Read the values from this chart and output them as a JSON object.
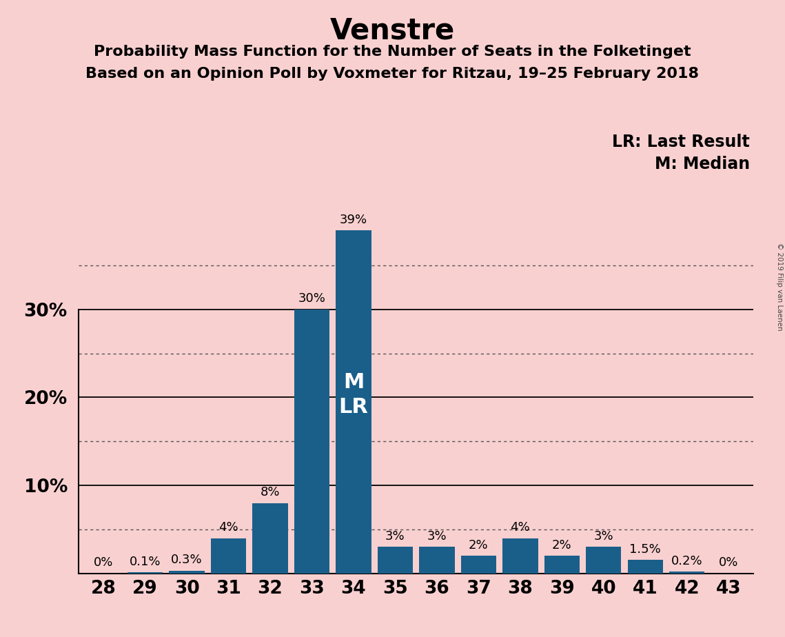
{
  "title": "Venstre",
  "subtitle1": "Probability Mass Function for the Number of Seats in the Folketinget",
  "subtitle2": "Based on an Opinion Poll by Voxmeter for Ritzau, 19–25 February 2018",
  "copyright_text": "© 2019 Filip van Laenen",
  "legend_line1": "LR: Last Result",
  "legend_line2": "M: Median",
  "categories": [
    28,
    29,
    30,
    31,
    32,
    33,
    34,
    35,
    36,
    37,
    38,
    39,
    40,
    41,
    42,
    43
  ],
  "values": [
    0.0,
    0.1,
    0.3,
    4.0,
    8.0,
    30.0,
    39.0,
    3.0,
    3.0,
    2.0,
    4.0,
    2.0,
    3.0,
    1.5,
    0.2,
    0.0
  ],
  "labels": [
    "0%",
    "0.1%",
    "0.3%",
    "4%",
    "8%",
    "30%",
    "39%",
    "3%",
    "3%",
    "2%",
    "4%",
    "2%",
    "3%",
    "1.5%",
    "0.2%",
    "0%"
  ],
  "bar_color": "#1a5f8a",
  "background_color": "#f9d0d0",
  "median_bar_index": 6,
  "median_label": "M",
  "last_result_label": "LR",
  "solid_lines": [
    10,
    20,
    30
  ],
  "dotted_lines": [
    5,
    15,
    25,
    35
  ],
  "ylim": [
    0,
    42
  ],
  "title_fontsize": 30,
  "subtitle_fontsize": 16,
  "tick_fontsize": 19,
  "label_fontsize": 13,
  "legend_fontsize": 17,
  "ml_label_fontsize": 22
}
